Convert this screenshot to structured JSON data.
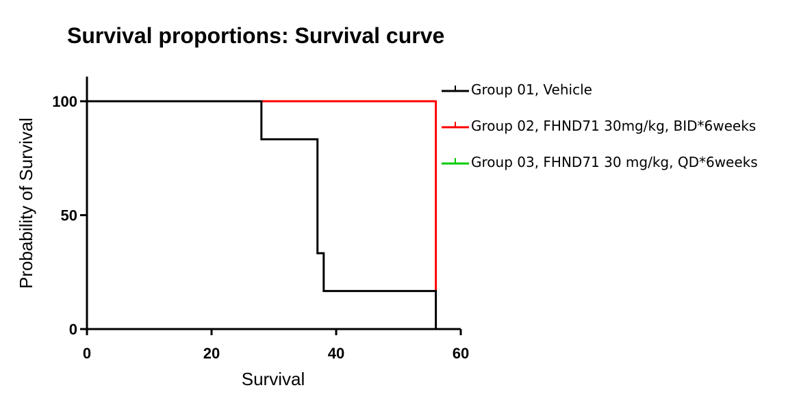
{
  "chart_data": {
    "type": "line",
    "step": true,
    "title": "Survival proportions: Survival curve",
    "xlabel": "Survival",
    "ylabel": "Probability of Survival",
    "xlim": [
      0,
      60
    ],
    "ylim": [
      0,
      100
    ],
    "xticks": [
      0,
      20,
      40,
      60
    ],
    "yticks": [
      0,
      50,
      100
    ],
    "grid": false,
    "legend_position": "right",
    "series": [
      {
        "name": "Group 01, Vehicle",
        "color": "#000000",
        "x": [
          0,
          28,
          37,
          38,
          56
        ],
        "y": [
          100,
          83.3,
          33.3,
          16.7,
          0
        ]
      },
      {
        "name": "Group 02, FHND71 30mg/kg, BID*6weeks",
        "color": "#ff0000",
        "x": [
          0,
          56
        ],
        "y": [
          100,
          16.7
        ]
      },
      {
        "name": "Group 03, FHND71 30 mg/kg, QD*6weeks",
        "color": "#00cc00",
        "x": [],
        "y": []
      }
    ]
  }
}
